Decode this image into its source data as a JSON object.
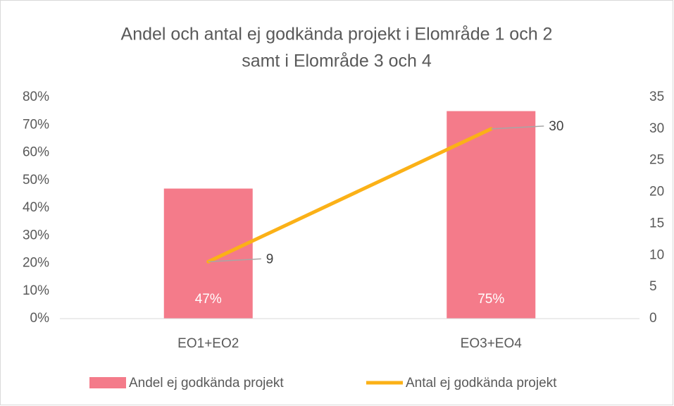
{
  "chart_data": {
    "type": "bar",
    "title": [
      "Andel och antal ej godkända projekt i Elområde 1 och 2",
      "samt i Elområde 3 och 4"
    ],
    "categories": [
      "EO1+EO2",
      "EO3+EO4"
    ],
    "series": [
      {
        "name": "Andel ej godkända projekt",
        "type": "bar",
        "color": "#f47b8a",
        "values": [
          47,
          75
        ],
        "value_labels": [
          "47%",
          "75%"
        ]
      },
      {
        "name": "Antal ej godkända projekt",
        "type": "line",
        "axis": "y2",
        "color": "#fbb117",
        "values": [
          9,
          30
        ]
      }
    ],
    "ylim": [
      0,
      80
    ],
    "yticks": [
      {
        "value": 0,
        "label": "0%"
      },
      {
        "value": 10,
        "label": "10%"
      },
      {
        "value": 20,
        "label": "20%"
      },
      {
        "value": 30,
        "label": "30%"
      },
      {
        "value": 40,
        "label": "40%"
      },
      {
        "value": 50,
        "label": "50%"
      },
      {
        "value": 60,
        "label": "60%"
      },
      {
        "value": 70,
        "label": "70%"
      },
      {
        "value": 80,
        "label": "80%"
      }
    ],
    "y2lim": [
      0,
      35
    ],
    "y2ticks": [
      0,
      5,
      10,
      15,
      20,
      25,
      30,
      35
    ],
    "grid": false,
    "legend": "bottom"
  }
}
